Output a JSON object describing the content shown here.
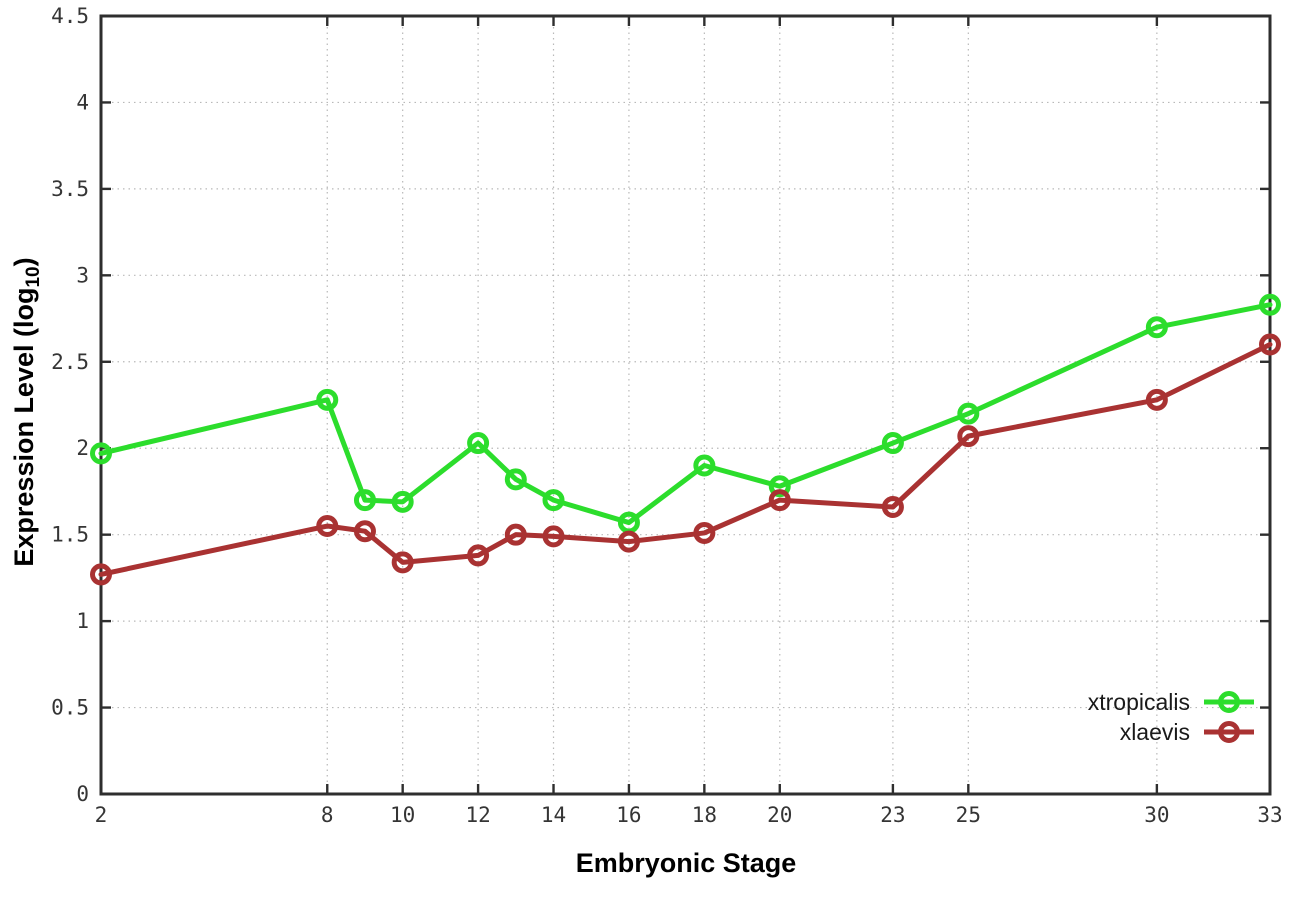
{
  "chart_data": {
    "type": "line",
    "title": "",
    "xlabel": "Embryonic Stage",
    "ylabel": "Expression Level (log10)",
    "ylabel_prefix": "Expression Level (log",
    "ylabel_sub": "10",
    "ylabel_suffix": ")",
    "xlim": [
      2,
      33
    ],
    "ylim": [
      0,
      4.5
    ],
    "x_ticks": [
      2,
      8,
      10,
      12,
      14,
      16,
      18,
      20,
      23,
      25,
      30,
      33
    ],
    "y_ticks": [
      0,
      0.5,
      1,
      1.5,
      2,
      2.5,
      3,
      3.5,
      4,
      4.5
    ],
    "grid": true,
    "legend_position": "inside-bottom-right",
    "x": [
      2,
      8,
      9,
      10,
      12,
      13,
      14,
      16,
      18,
      20,
      23,
      25,
      30,
      33
    ],
    "series": [
      {
        "name": "xtropicalis",
        "color": "#2cdd2c",
        "values": [
          1.97,
          2.28,
          1.7,
          1.69,
          2.03,
          1.82,
          1.7,
          1.57,
          1.9,
          1.78,
          2.03,
          2.2,
          2.7,
          2.83
        ]
      },
      {
        "name": "xlaevis",
        "color": "#a93232",
        "values": [
          1.27,
          1.55,
          1.52,
          1.34,
          1.38,
          1.5,
          1.49,
          1.46,
          1.51,
          1.7,
          1.66,
          2.07,
          2.28,
          2.6
        ]
      }
    ]
  },
  "colors": {
    "background": "#ffffff",
    "border": "#2e2e2e",
    "grid": "#b9b9b9",
    "tick_label": "#353535"
  }
}
